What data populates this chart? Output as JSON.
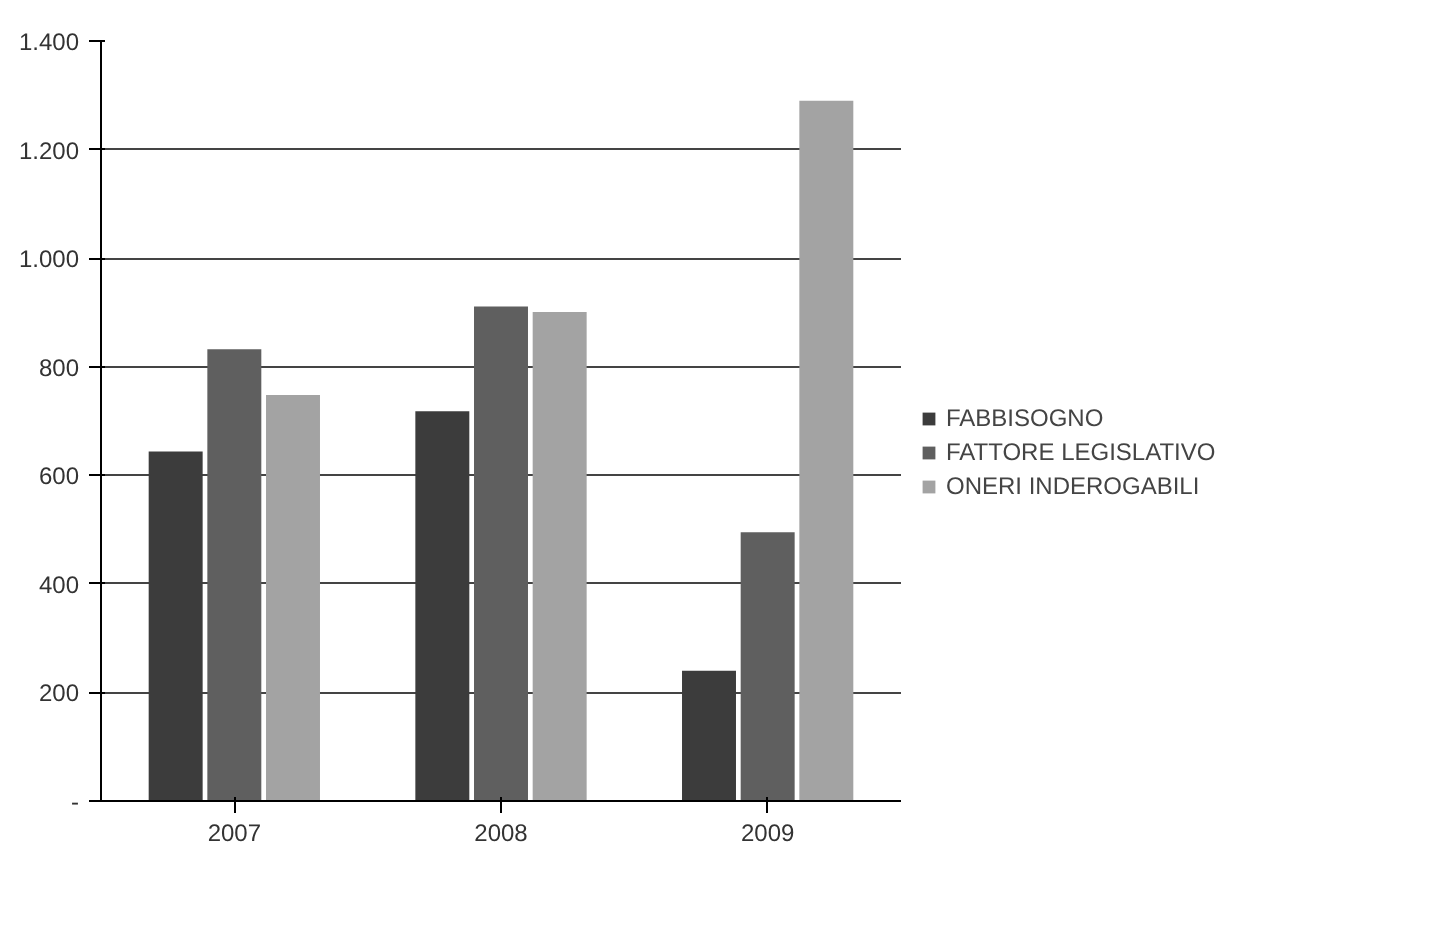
{
  "chart_data": {
    "type": "bar",
    "categories": [
      "2007",
      "2008",
      "2009"
    ],
    "series": [
      {
        "name": "FABBISOGNO",
        "color": "#3c3c3c",
        "values": [
          644,
          718,
          240
        ]
      },
      {
        "name": "FATTORE LEGISLATIVO",
        "color": "#5f5f5f",
        "values": [
          832,
          911,
          495
        ]
      },
      {
        "name": "ONERI INDEROGABILI",
        "color": "#a3a3a3",
        "values": [
          748,
          901,
          1290
        ]
      }
    ],
    "ylim": [
      0,
      1400
    ],
    "yticks": [
      {
        "value": 0,
        "label": "-"
      },
      200,
      400,
      600,
      800,
      {
        "value": 1000,
        "label": "1.000"
      },
      {
        "value": 1200,
        "label": "1.200"
      },
      {
        "value": 1400,
        "label": "1.400"
      }
    ],
    "grid": "y",
    "legend": "right"
  }
}
